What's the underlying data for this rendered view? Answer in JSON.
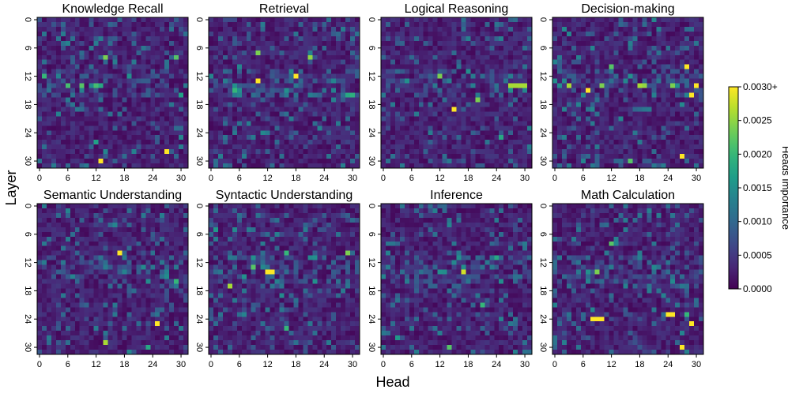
{
  "chart_data": {
    "type": "heatmap",
    "layout": "2x4 grid of panels",
    "figure_xlabel": "Head",
    "figure_ylabel": "Layer",
    "x_ticks": [
      0,
      6,
      12,
      18,
      24,
      30
    ],
    "y_ticks": [
      0,
      6,
      12,
      18,
      24,
      30
    ],
    "x_range": [
      0,
      31
    ],
    "y_range": [
      0,
      31
    ],
    "colorbar": {
      "label": "Heads Importance",
      "ticks": [
        "0.0000",
        "0.0005",
        "0.0010",
        "0.0015",
        "0.0020",
        "0.0025",
        "0.0030+"
      ],
      "min": 0.0,
      "max": 0.003,
      "colormap": "viridis"
    },
    "panels": [
      {
        "title": "Knowledge Recall",
        "hotspots": [
          {
            "layer": 8,
            "head": 14,
            "value": 0.0024
          },
          {
            "layer": 8,
            "head": 29,
            "value": 0.0022
          },
          {
            "layer": 12,
            "head": 1,
            "value": 0.002
          },
          {
            "layer": 14,
            "head": 6,
            "value": 0.0021
          },
          {
            "layer": 14,
            "head": 9,
            "value": 0.0022
          },
          {
            "layer": 14,
            "head": 12,
            "value": 0.0021
          },
          {
            "layer": 14,
            "head": 13,
            "value": 0.0018
          },
          {
            "layer": 28,
            "head": 27,
            "value": 0.003
          },
          {
            "layer": 30,
            "head": 13,
            "value": 0.003
          },
          {
            "layer": 26,
            "head": 12,
            "value": 0.0017
          },
          {
            "layer": 16,
            "head": 30,
            "value": 0.0017
          }
        ]
      },
      {
        "title": "Retrieval",
        "hotspots": [
          {
            "layer": 13,
            "head": 10,
            "value": 0.003
          },
          {
            "layer": 12,
            "head": 18,
            "value": 0.003
          },
          {
            "layer": 7,
            "head": 10,
            "value": 0.0024
          },
          {
            "layer": 8,
            "head": 21,
            "value": 0.0025
          },
          {
            "layer": 15,
            "head": 5,
            "value": 0.002
          },
          {
            "layer": 16,
            "head": 29,
            "value": 0.0018
          },
          {
            "layer": 16,
            "head": 30,
            "value": 0.0019
          }
        ]
      },
      {
        "title": "Logical Reasoning",
        "hotspots": [
          {
            "layer": 19,
            "head": 15,
            "value": 0.003
          },
          {
            "layer": 12,
            "head": 12,
            "value": 0.0024
          },
          {
            "layer": 14,
            "head": 27,
            "value": 0.0026
          },
          {
            "layer": 14,
            "head": 28,
            "value": 0.0026
          },
          {
            "layer": 14,
            "head": 29,
            "value": 0.0026
          },
          {
            "layer": 14,
            "head": 30,
            "value": 0.0026
          },
          {
            "layer": 17,
            "head": 20,
            "value": 0.0024
          },
          {
            "layer": 25,
            "head": 25,
            "value": 0.0018
          }
        ]
      },
      {
        "title": "Decision-making",
        "hotspots": [
          {
            "layer": 10,
            "head": 28,
            "value": 0.003
          },
          {
            "layer": 14,
            "head": 30,
            "value": 0.003
          },
          {
            "layer": 15,
            "head": 7,
            "value": 0.003
          },
          {
            "layer": 16,
            "head": 29,
            "value": 0.003
          },
          {
            "layer": 29,
            "head": 27,
            "value": 0.003
          },
          {
            "layer": 14,
            "head": 3,
            "value": 0.0026
          },
          {
            "layer": 14,
            "head": 10,
            "value": 0.0024
          },
          {
            "layer": 14,
            "head": 18,
            "value": 0.0026
          },
          {
            "layer": 14,
            "head": 19,
            "value": 0.0025
          },
          {
            "layer": 14,
            "head": 25,
            "value": 0.0024
          },
          {
            "layer": 10,
            "head": 12,
            "value": 0.0022
          },
          {
            "layer": 30,
            "head": 16,
            "value": 0.0022
          }
        ]
      },
      {
        "title": "Semantic Understanding",
        "hotspots": [
          {
            "layer": 10,
            "head": 17,
            "value": 0.003
          },
          {
            "layer": 25,
            "head": 25,
            "value": 0.003
          },
          {
            "layer": 29,
            "head": 14,
            "value": 0.0026
          },
          {
            "layer": 16,
            "head": 29,
            "value": 0.002
          },
          {
            "layer": 30,
            "head": 23,
            "value": 0.0018
          }
        ]
      },
      {
        "title": "Syntactic Understanding",
        "hotspots": [
          {
            "layer": 14,
            "head": 12,
            "value": 0.003
          },
          {
            "layer": 14,
            "head": 13,
            "value": 0.003
          },
          {
            "layer": 17,
            "head": 4,
            "value": 0.0026
          },
          {
            "layer": 10,
            "head": 29,
            "value": 0.0024
          },
          {
            "layer": 13,
            "head": 9,
            "value": 0.0022
          },
          {
            "layer": 10,
            "head": 16,
            "value": 0.002
          },
          {
            "layer": 26,
            "head": 16,
            "value": 0.002
          },
          {
            "layer": 5,
            "head": 1,
            "value": 0.0016
          }
        ]
      },
      {
        "title": "Inference",
        "hotspots": [
          {
            "layer": 14,
            "head": 17,
            "value": 0.0028
          },
          {
            "layer": 30,
            "head": 14,
            "value": 0.0022
          },
          {
            "layer": 21,
            "head": 21,
            "value": 0.002
          },
          {
            "layer": 11,
            "head": 24,
            "value": 0.0018
          },
          {
            "layer": 28,
            "head": 3,
            "value": 0.0016
          }
        ]
      },
      {
        "title": "Math Calculation",
        "hotspots": [
          {
            "layer": 23,
            "head": 24,
            "value": 0.003
          },
          {
            "layer": 23,
            "head": 25,
            "value": 0.003
          },
          {
            "layer": 24,
            "head": 8,
            "value": 0.003
          },
          {
            "layer": 24,
            "head": 9,
            "value": 0.003
          },
          {
            "layer": 24,
            "head": 10,
            "value": 0.003
          },
          {
            "layer": 25,
            "head": 29,
            "value": 0.003
          },
          {
            "layer": 30,
            "head": 27,
            "value": 0.003
          },
          {
            "layer": 14,
            "head": 9,
            "value": 0.0024
          },
          {
            "layer": 8,
            "head": 12,
            "value": 0.0022
          },
          {
            "layer": 23,
            "head": 28,
            "value": 0.002
          }
        ]
      }
    ]
  }
}
